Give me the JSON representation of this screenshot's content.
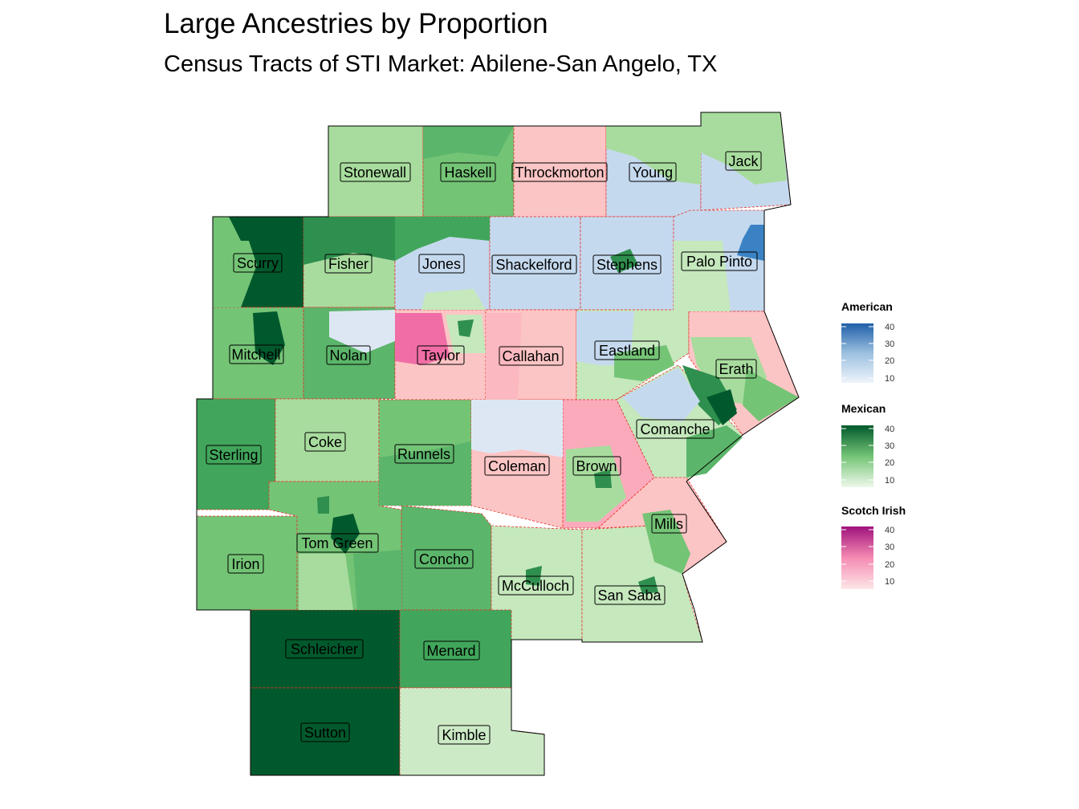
{
  "title": "Large Ancestries by Proportion",
  "subtitle": "Census Tracts of STI Market: Abilene-San Angelo, TX",
  "counties": {
    "stonewall": "Stonewall",
    "haskell": "Haskell",
    "throckmorton": "Throckmorton",
    "young": "Young",
    "jack": "Jack",
    "scurry": "Scurry",
    "fisher": "Fisher",
    "jones": "Jones",
    "shackelford": "Shackelford",
    "stephens": "Stephens",
    "palo_pinto": "Palo Pinto",
    "mitchell": "Mitchell",
    "nolan": "Nolan",
    "taylor": "Taylor",
    "callahan": "Callahan",
    "eastland": "Eastland",
    "erath": "Erath",
    "sterling": "Sterling",
    "coke": "Coke",
    "runnels": "Runnels",
    "coleman": "Coleman",
    "brown": "Brown",
    "comanche": "Comanche",
    "irion": "Irion",
    "tom_green": "Tom Green",
    "concho": "Concho",
    "mcculloch": "McCulloch",
    "san_saba": "San Saba",
    "mills": "Mills",
    "schleicher": "Schleicher",
    "menard": "Menard",
    "sutton": "Sutton",
    "kimble": "Kimble"
  },
  "legend": {
    "american": {
      "title": "American",
      "ticks": [
        "40",
        "30",
        "20",
        "10"
      ],
      "low": "#e3ecf7",
      "high": "#1f5fa8"
    },
    "mexican": {
      "title": "Mexican",
      "ticks": [
        "40",
        "30",
        "20",
        "10"
      ],
      "low": "#eef8ea",
      "high": "#00592c"
    },
    "scotch_irish": {
      "title": "Scotch Irish",
      "ticks": [
        "40",
        "30",
        "20",
        "10"
      ],
      "low": "#fde4e4",
      "high": "#a0127c"
    }
  }
}
